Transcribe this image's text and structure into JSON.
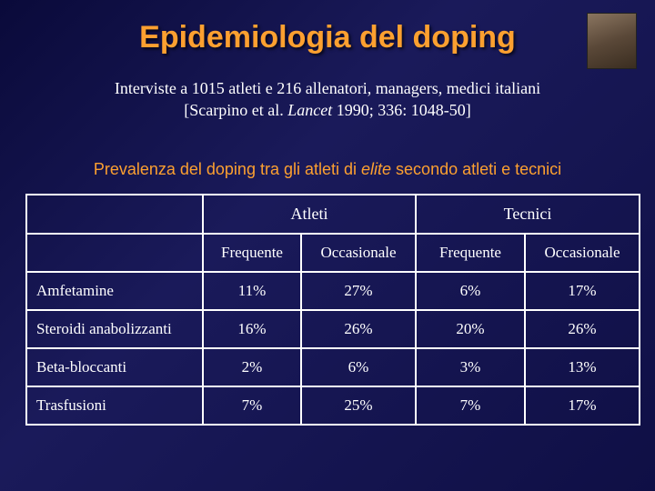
{
  "title": "Epidemiologia del doping",
  "subtitle_line1": "Interviste a 1015 atleti e 216 allenatori, managers, medici italiani",
  "subtitle_line2_pre": "[Scarpino et al. ",
  "subtitle_line2_italic": "Lancet",
  "subtitle_line2_post": " 1990; 336: 1048-50]",
  "caption_pre": "Prevalenza del doping tra gli atleti di ",
  "caption_italic": "elite",
  "caption_post": " secondo atleti e tecnici",
  "table": {
    "group_headers": [
      "Atleti",
      "Tecnici"
    ],
    "sub_headers": [
      "Frequente",
      "Occasionale",
      "Frequente",
      "Occasionale"
    ],
    "rows": [
      {
        "label": "Amfetamine",
        "cells": [
          "11%",
          "27%",
          "6%",
          "17%"
        ]
      },
      {
        "label": "Steroidi anabolizzanti",
        "cells": [
          "16%",
          "26%",
          "20%",
          "26%"
        ]
      },
      {
        "label": "Beta-bloccanti",
        "cells": [
          "2%",
          "6%",
          "3%",
          "13%"
        ]
      },
      {
        "label": "Trasfusioni",
        "cells": [
          "7%",
          "25%",
          "7%",
          "17%"
        ]
      }
    ]
  },
  "colors": {
    "title": "#fca030",
    "caption": "#fca030",
    "text": "#ffffff",
    "border": "#ffffff",
    "bg_from": "#0a0a3a",
    "bg_to": "#1a1a5a"
  },
  "fonts": {
    "title_family": "Comic Sans MS",
    "title_size_pt": 26,
    "body_family": "Times New Roman",
    "body_size_pt": 14,
    "caption_family": "Arial",
    "caption_size_pt": 14
  }
}
